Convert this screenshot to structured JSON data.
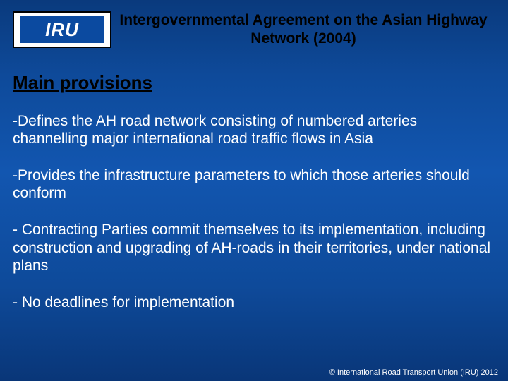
{
  "colors": {
    "bg_gradient_top": "#0a3a7d",
    "bg_gradient_mid": "#1256b0",
    "bg_gradient_bottom": "#093678",
    "logo_bg": "#ffffff",
    "logo_border": "#000000",
    "logo_inner_bg": "#0b4aa0",
    "title_color": "#000000",
    "section_title_color": "#000000",
    "body_text_color": "#ffffff",
    "divider_color": "#000000"
  },
  "typography": {
    "title_fontsize_pt": 16,
    "section_title_fontsize_pt": 20,
    "body_fontsize_pt": 16,
    "footer_fontsize_pt": 8,
    "font_family": "Arial"
  },
  "logo": {
    "text": "IRU"
  },
  "header": {
    "title": "Intergovernmental Agreement on the Asian Highway Network (2004)"
  },
  "section": {
    "title": "Main provisions"
  },
  "body": {
    "items": [
      "-Defines the AH road network consisting of numbered arteries channelling major international road traffic flows in Asia",
      "-Provides the infrastructure parameters to which those arteries should conform",
      "- Contracting Parties commit themselves to its implementation, including construction and upgrading of AH-roads in their territories, under national plans",
      "- No deadlines for implementation"
    ]
  },
  "footer": {
    "copyright": "© International Road Transport Union (IRU) 2012"
  }
}
